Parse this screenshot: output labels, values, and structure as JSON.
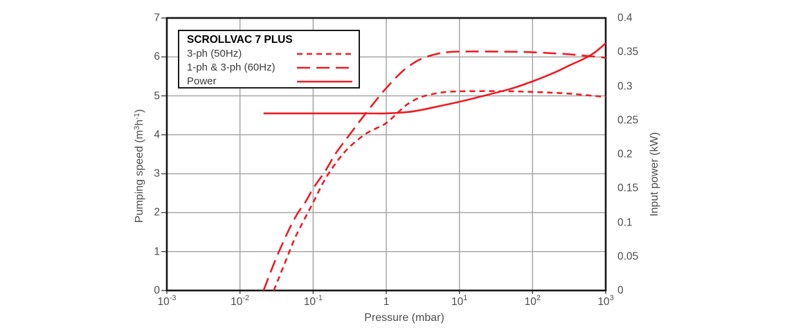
{
  "chart_data": {
    "type": "line",
    "title": "SCROLLVAC 7 PLUS",
    "x_axis": {
      "label": "Pressure (mbar)",
      "scale": "log",
      "unit": "mbar",
      "min_exp": -3,
      "max_exp": 3,
      "tick_exponents": [
        -3,
        -2,
        -1,
        0,
        1,
        2,
        3
      ]
    },
    "y_left_axis": {
      "label": "Pumping speed (m3h-1)",
      "label_parts": {
        "pre": "Pumping speed (m",
        "sup1": "3",
        "mid": "h",
        "sup2": "-1",
        "post": ")"
      },
      "min": 0,
      "max": 7,
      "ticks": [
        0,
        1,
        2,
        3,
        4,
        5,
        6,
        7
      ]
    },
    "y_right_axis": {
      "label": "Input power (kW)",
      "min": 0,
      "max": 0.4,
      "ticks": [
        "0",
        "0.05",
        "0.1",
        "0.15",
        "0.2",
        "0.25",
        "0.3",
        "0.35",
        "0.4"
      ]
    },
    "grid": "on",
    "legend_position": "top-left",
    "series": [
      {
        "id": "3ph-50hz",
        "name": "3-ph (50Hz)",
        "axis": "left",
        "style": "short-dash",
        "points": [
          [
            0.029,
            0
          ],
          [
            0.04,
            0.65
          ],
          [
            0.055,
            1.3
          ],
          [
            0.07,
            1.7
          ],
          [
            0.1,
            2.26
          ],
          [
            0.14,
            2.8
          ],
          [
            0.2,
            3.25
          ],
          [
            0.3,
            3.65
          ],
          [
            0.5,
            4.0
          ],
          [
            0.7,
            4.15
          ],
          [
            1,
            4.3
          ],
          [
            1.5,
            4.6
          ],
          [
            2,
            4.8
          ],
          [
            3,
            4.97
          ],
          [
            5,
            5.07
          ],
          [
            8,
            5.11
          ],
          [
            15,
            5.12
          ],
          [
            40,
            5.12
          ],
          [
            100,
            5.1
          ],
          [
            300,
            5.06
          ],
          [
            1000,
            4.97
          ]
        ]
      },
      {
        "id": "1ph-3ph-60hz",
        "name": "1-ph & 3-ph (60Hz)",
        "axis": "left",
        "style": "long-dash",
        "points": [
          [
            0.021,
            0
          ],
          [
            0.03,
            0.75
          ],
          [
            0.045,
            1.5
          ],
          [
            0.06,
            1.95
          ],
          [
            0.08,
            2.3
          ],
          [
            0.1,
            2.62
          ],
          [
            0.15,
            3.1
          ],
          [
            0.2,
            3.5
          ],
          [
            0.3,
            3.95
          ],
          [
            0.5,
            4.5
          ],
          [
            0.7,
            4.85
          ],
          [
            1,
            5.2
          ],
          [
            1.5,
            5.55
          ],
          [
            2,
            5.75
          ],
          [
            3,
            5.95
          ],
          [
            5,
            6.08
          ],
          [
            8,
            6.13
          ],
          [
            20,
            6.14
          ],
          [
            60,
            6.13
          ],
          [
            100,
            6.12
          ],
          [
            300,
            6.07
          ],
          [
            1000,
            5.98
          ]
        ]
      },
      {
        "id": "power",
        "name": "Power",
        "axis": "right",
        "style": "solid",
        "points": [
          [
            0.021,
            0.26
          ],
          [
            0.1,
            0.26
          ],
          [
            0.5,
            0.26
          ],
          [
            1,
            0.26
          ],
          [
            2,
            0.262
          ],
          [
            3,
            0.265
          ],
          [
            5,
            0.27
          ],
          [
            10,
            0.277
          ],
          [
            20,
            0.285
          ],
          [
            50,
            0.296
          ],
          [
            100,
            0.307
          ],
          [
            200,
            0.32
          ],
          [
            300,
            0.329
          ],
          [
            500,
            0.34
          ],
          [
            700,
            0.349
          ],
          [
            1000,
            0.363
          ]
        ]
      }
    ],
    "colors": {
      "curve_red": "#ED1C24",
      "grid": "#a0a0a0",
      "frame": "#161616",
      "text": "#4e4e4e"
    }
  }
}
